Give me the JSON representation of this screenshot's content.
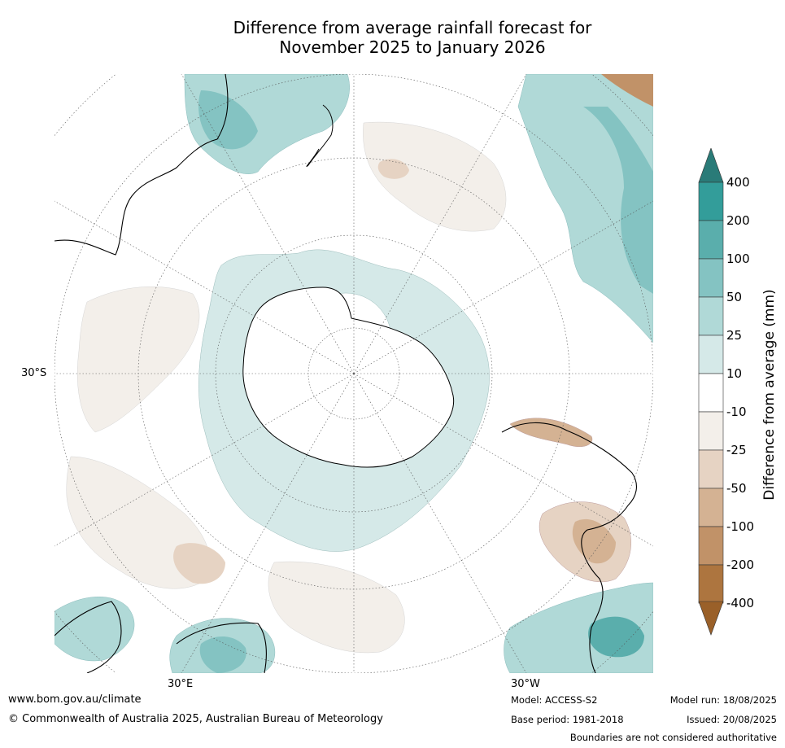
{
  "title_line1": "Difference from average rainfall forecast for",
  "title_line2": "November 2025 to January 2026",
  "map": {
    "lat_label": "30°S",
    "lon_label_east": "30°E",
    "lon_label_west": "30°W"
  },
  "colorbar": {
    "title": "Difference from average (mm)",
    "ticks": [
      "400",
      "200",
      "100",
      "50",
      "25",
      "10",
      "-10",
      "-25",
      "-50",
      "-100",
      "-200",
      "-400"
    ],
    "colors": {
      "over": "#2a7b78",
      "b200_400": "#339d9a",
      "b100_200": "#5aaeac",
      "b50_100": "#84c3c2",
      "b25_50": "#b0d9d7",
      "b10_25": "#d5e9e8",
      "neutral": "#ffffff",
      "bm25_m10": "#f3efea",
      "bm50_m25": "#e6d3c3",
      "bm100_m50": "#d4b293",
      "bm200_m100": "#c19268",
      "bm400_m200": "#ad753f",
      "under": "#9a6029"
    }
  },
  "footer": {
    "url": "www.bom.gov.au/climate",
    "copyright": "© Commonwealth of Australia 2025, Australian Bureau of Meteorology",
    "model": "Model: ACCESS-S2",
    "base_period": "Base period: 1981-2018",
    "model_run": "Model run: 18/08/2025",
    "issued": "Issued: 20/08/2025",
    "disclaimer": "Boundaries are not considered authoritative"
  }
}
